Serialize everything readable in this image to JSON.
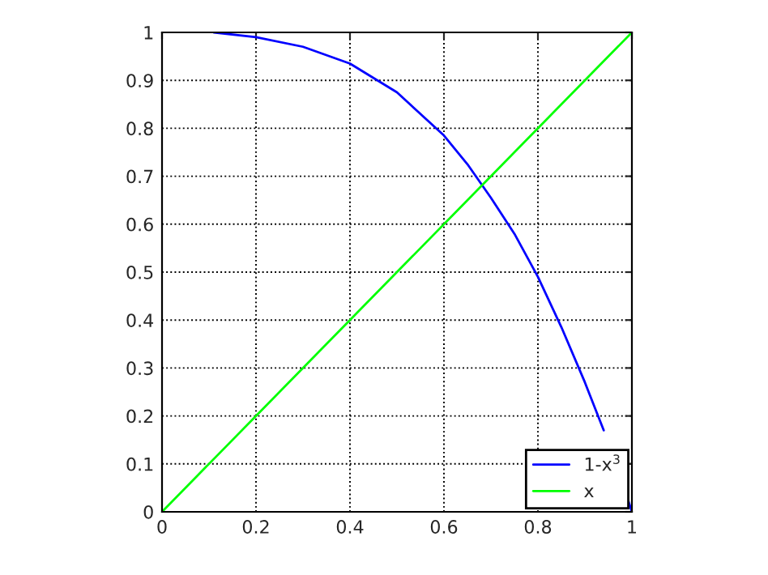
{
  "chart_data": {
    "type": "line",
    "series": [
      {
        "name": "1-x$^{3}$",
        "color": "#0000ff",
        "x": [
          0.11,
          0.2,
          0.3,
          0.4,
          0.5,
          0.6,
          0.65,
          0.7,
          0.75,
          0.8,
          0.85,
          0.9,
          0.94,
          0.97,
          0.99,
          1.0
        ],
        "values": [
          1.0,
          0.99,
          0.97,
          0.935,
          0.875,
          0.785,
          0.725,
          0.655,
          0.58,
          0.49,
          0.385,
          0.27,
          0.17,
          null,
          0.03,
          0.0
        ]
      },
      {
        "name": "x",
        "color": "#00ff00",
        "x": [
          0,
          1
        ],
        "values": [
          0,
          1
        ]
      }
    ],
    "xlim": [
      0,
      1
    ],
    "ylim": [
      0,
      1
    ],
    "xticks": [
      0,
      0.2,
      0.4,
      0.6,
      0.8,
      1
    ],
    "yticks": [
      0,
      0.1,
      0.2,
      0.3,
      0.4,
      0.5,
      0.6,
      0.7,
      0.8,
      0.9,
      1
    ],
    "grid": true,
    "line_style": "solid",
    "legend": "bottom right"
  }
}
